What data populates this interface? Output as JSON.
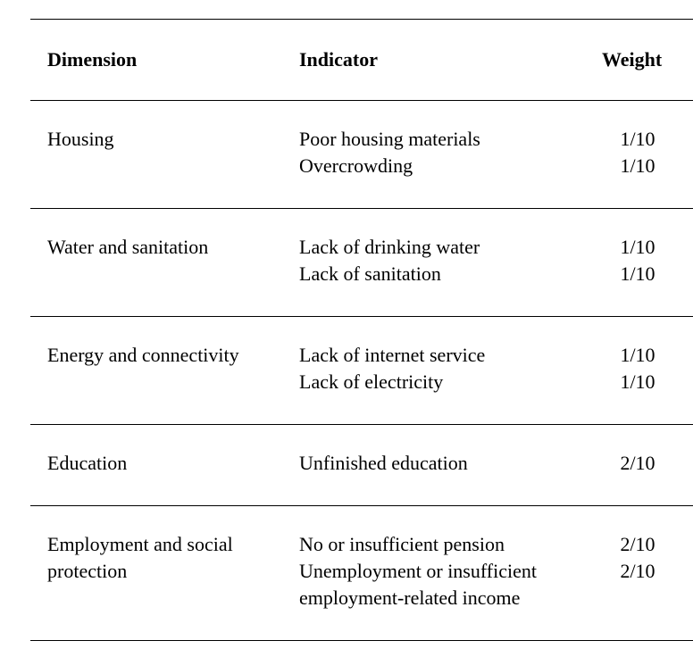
{
  "headers": {
    "dimension": "Dimension",
    "indicator": "Indicator",
    "weight": "Weight"
  },
  "groups": [
    {
      "dimension": [
        "Housing"
      ],
      "indicators": [
        "Poor housing materials",
        "Overcrowding"
      ],
      "weights": [
        "1/10",
        "1/10"
      ]
    },
    {
      "dimension": [
        "Water and sanitation"
      ],
      "indicators": [
        "Lack of drinking water",
        "Lack of sanitation"
      ],
      "weights": [
        "1/10",
        "1/10"
      ]
    },
    {
      "dimension": [
        "Energy and connectivity"
      ],
      "indicators": [
        "Lack of internet service",
        "Lack of electricity"
      ],
      "weights": [
        "1/10",
        "1/10"
      ]
    },
    {
      "dimension": [
        "Education"
      ],
      "indicators": [
        "Unfinished education"
      ],
      "weights": [
        "2/10"
      ]
    },
    {
      "dimension": [
        "Employment and social",
        "protection"
      ],
      "indicators": [
        "No or insufficient pension",
        "Unemployment or insufficient",
        "employment-related income"
      ],
      "weights": [
        "2/10",
        "2/10"
      ]
    }
  ]
}
